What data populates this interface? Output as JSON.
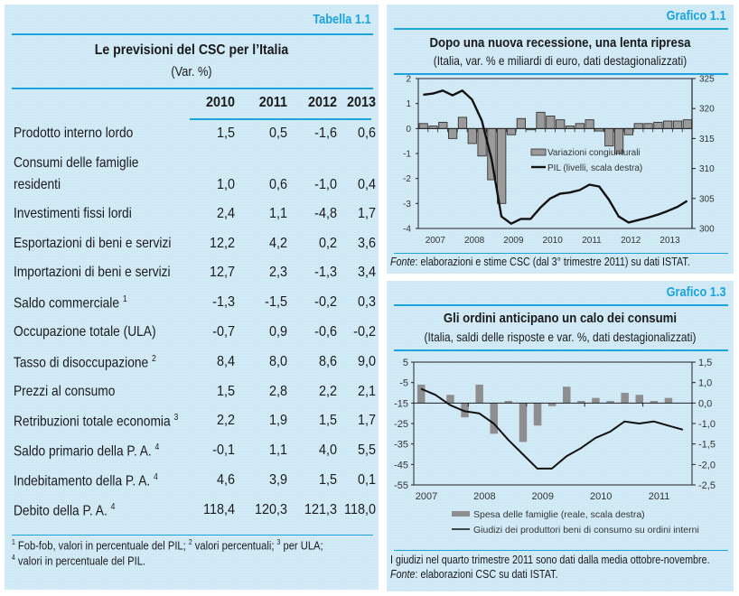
{
  "table": {
    "tag": "Tabella 1.1",
    "title": "Le previsioni del CSC per l’Italia",
    "subtitle": "(Var. %)",
    "years": [
      "2010",
      "2011",
      "2012",
      "2013"
    ],
    "rows": [
      {
        "label": "Prodotto interno lordo",
        "note": "",
        "values": [
          "1,5",
          "0,5",
          "-1,6",
          "0,6"
        ]
      },
      {
        "label": "Consumi delle famiglie",
        "label2": "residenti",
        "note": "",
        "values": [
          "1,0",
          "0,6",
          "-1,0",
          "0,4"
        ]
      },
      {
        "label": "Investimenti fissi lordi",
        "note": "",
        "values": [
          "2,4",
          "1,1",
          "-4,8",
          "1,7"
        ]
      },
      {
        "label": "Esportazioni di beni e servizi",
        "note": "",
        "values": [
          "12,2",
          "4,2",
          "0,2",
          "3,6"
        ]
      },
      {
        "label": "Importazioni di beni e servizi",
        "note": "",
        "values": [
          "12,7",
          "2,3",
          "-1,3",
          "3,4"
        ]
      },
      {
        "label": "Saldo commerciale",
        "note": "1",
        "values": [
          "-1,3",
          "-1,5",
          "-0,2",
          "0,3"
        ]
      },
      {
        "label": "Occupazione totale (ULA)",
        "note": "",
        "values": [
          "-0,7",
          "0,9",
          "-0,6",
          "-0,2"
        ]
      },
      {
        "label": "Tasso di disoccupazione",
        "note": "2",
        "values": [
          "8,4",
          "8,0",
          "8,6",
          "9,0"
        ]
      },
      {
        "label": "Prezzi al consumo",
        "note": "",
        "values": [
          "1,5",
          "2,8",
          "2,2",
          "2,1"
        ]
      },
      {
        "label": "Retribuzioni totale economia",
        "note": "3",
        "values": [
          "2,2",
          "1,9",
          "1,5",
          "1,7"
        ]
      },
      {
        "label": "Saldo primario della P. A.",
        "note": "4",
        "values": [
          "-0,1",
          "1,1",
          "4,0",
          "5,5"
        ]
      },
      {
        "label": "Indebitamento della P. A.",
        "note": "4",
        "values": [
          "4,6",
          "3,9",
          "1,5",
          "0,1"
        ]
      },
      {
        "label": "Debito della P. A.",
        "note": "4",
        "values": [
          "118,4",
          "120,3",
          "121,3",
          "118,0"
        ]
      }
    ],
    "footnotes": {
      "n1": "1",
      "t1": " Fob-fob, valori in percentuale del PIL; ",
      "n2": "2",
      "t2": " valori percentuali; ",
      "n3": "3",
      "t3": " per ULA;",
      "n4": "4",
      "t4": " valori in percentuale del PIL."
    }
  },
  "chart_data": [
    {
      "id": "grafico-1-1",
      "type": "bar+line",
      "tag": "Grafico 1.1",
      "title": "Dopo una nuova recessione, una lenta ripresa",
      "subtitle": "(Italia, var. % e miliardi di euro, dati destagionalizzati)",
      "x_tick_labels": [
        "2007",
        "2008",
        "2009",
        "2010",
        "2011",
        "2012",
        "2013"
      ],
      "x_quarters_start": "2007Q1",
      "y_left": {
        "min": -4,
        "max": 2,
        "ticks": [
          "-4",
          "-3",
          "-2",
          "-1",
          "0",
          "1",
          "2"
        ]
      },
      "y_right": {
        "min": 300,
        "max": 325,
        "ticks": [
          "300",
          "305",
          "310",
          "315",
          "320",
          "325"
        ]
      },
      "grid": false,
      "legend_position": "center-right",
      "series": [
        {
          "name": "Variazioni congiunturali",
          "kind": "bar",
          "axis": "left",
          "values": [
            0.2,
            0.1,
            0.25,
            -0.4,
            0.45,
            -0.6,
            -1.1,
            -2.05,
            -3.0,
            -0.25,
            0.4,
            -0.05,
            0.65,
            0.5,
            0.35,
            0.1,
            0.2,
            0.35,
            -0.1,
            -0.7,
            -1.0,
            -0.25,
            0.2,
            0.2,
            0.25,
            0.3,
            0.3,
            0.35
          ]
        },
        {
          "name": "PIL (livelli, scala destra)",
          "kind": "line",
          "axis": "right",
          "values": [
            322.3,
            322.5,
            323.0,
            322.2,
            323.0,
            321.5,
            318.0,
            311.5,
            302.0,
            300.8,
            301.6,
            301.6,
            303.5,
            305.0,
            305.8,
            306.0,
            306.4,
            307.3,
            307.0,
            304.8,
            302.0,
            301.0,
            301.4,
            301.8,
            302.3,
            302.9,
            303.6,
            304.6
          ]
        }
      ],
      "source_label": "Fonte",
      "source_text": ": elaborazioni e stime CSC (dal 3° trimestre 2011) su dati ISTAT."
    },
    {
      "id": "grafico-1-3",
      "type": "bar+line",
      "tag": "Grafico 1.3",
      "title": "Gli ordini anticipano un calo dei consumi",
      "subtitle": "(Italia, saldi delle risposte e var. %, dati destagionalizzati)",
      "x_tick_labels": [
        "2007",
        "2008",
        "2009",
        "2010",
        "2011"
      ],
      "x_quarters_start": "2007Q1",
      "y_left": {
        "min": -55,
        "max": 5,
        "ticks": [
          "-55",
          "-45",
          "-35",
          "-25",
          "-15",
          "-5",
          "5"
        ]
      },
      "y_right": {
        "min": -2.5,
        "max": 1.5,
        "ticks": [
          "-2,5",
          "-2,0",
          "-1,5",
          "-1,0",
          "0,0",
          "1,0",
          "1,5"
        ]
      },
      "grid": false,
      "legend_position": "bottom",
      "series": [
        {
          "name": "Spesa delle famiglie (reale, scala destra)",
          "kind": "bar",
          "axis": "right",
          "values": [
            0.9,
            0.0,
            0.4,
            -0.7,
            0.9,
            -1.5,
            0.1,
            -1.9,
            -1.1,
            -0.15,
            0.8,
            0.1,
            0.25,
            0.1,
            0.5,
            0.4,
            0.1,
            0.25
          ]
        },
        {
          "name": "Giudizi dei produttori beni di consumo su ordini interni",
          "kind": "line",
          "axis": "left",
          "values": [
            -8,
            -11,
            -16,
            -19,
            -20,
            -25,
            -33,
            -40,
            -47,
            -47,
            -41,
            -37,
            -32,
            -29,
            -24,
            -25,
            -24,
            -26,
            -28
          ]
        }
      ],
      "note_text": "I giudizi nel quarto trimestre 2011 sono dati dalla media ottobre-novembre.",
      "source_label": "Fonte",
      "source_text": ": elaborazioni CSC su dati ISTAT."
    }
  ]
}
